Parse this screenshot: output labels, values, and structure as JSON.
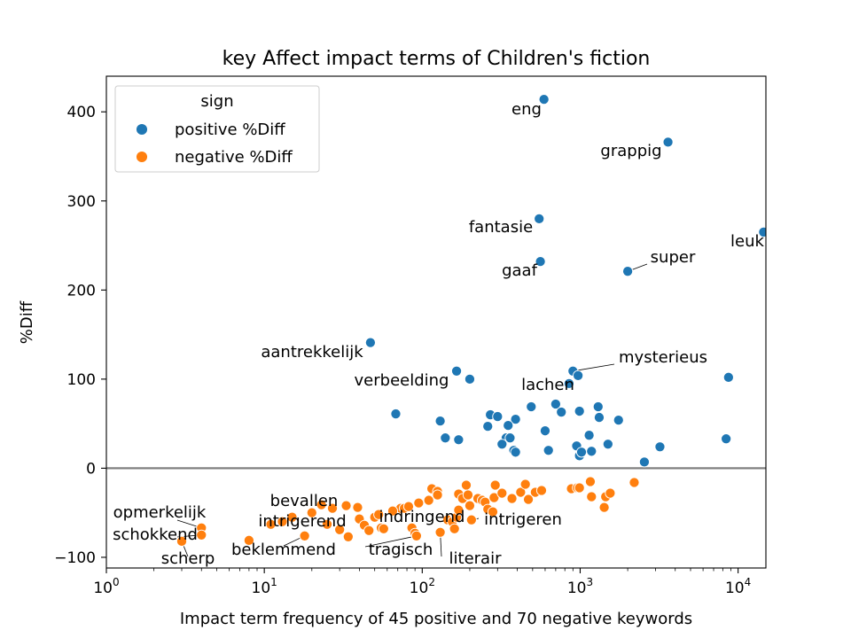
{
  "chart_data": {
    "type": "scatter",
    "title": "key Affect impact terms of Children's fiction",
    "xlabel": "Impact term frequency of 45 positive and 70 negative keywords",
    "ylabel": "%Diff",
    "xscale": "log",
    "xlim": [
      1,
      15000
    ],
    "ylim": [
      -112,
      440
    ],
    "x_ticks": [
      1,
      10,
      100,
      1000,
      10000
    ],
    "x_tick_labels": [
      [
        "10",
        "0"
      ],
      [
        "10",
        "1"
      ],
      [
        "10",
        "2"
      ],
      [
        "10",
        "3"
      ],
      [
        "10",
        "4"
      ]
    ],
    "y_ticks": [
      -100,
      0,
      100,
      200,
      300,
      400
    ],
    "y_tick_labels": [
      "−100",
      "0",
      "100",
      "200",
      "300",
      "400"
    ],
    "grid": false,
    "reference_line_y": 0,
    "legend": {
      "title": "sign",
      "placement": "top-left",
      "entries": [
        {
          "label": "positive %Diff",
          "color": "#1f77b4"
        },
        {
          "label": "negative %Diff",
          "color": "#ff7f0e"
        }
      ]
    },
    "series": [
      {
        "name": "positive %Diff",
        "color": "#1f77b4",
        "points": [
          [
            590,
            414
          ],
          [
            3600,
            366
          ],
          [
            14500,
            265
          ],
          [
            550,
            280
          ],
          [
            560,
            232
          ],
          [
            2000,
            221
          ],
          [
            47,
            141
          ],
          [
            165,
            109
          ],
          [
            200,
            100
          ],
          [
            900,
            109
          ],
          [
            970,
            104
          ],
          [
            8700,
            102
          ],
          [
            850,
            95
          ],
          [
            68,
            61
          ],
          [
            130,
            53
          ],
          [
            270,
            60
          ],
          [
            300,
            58
          ],
          [
            390,
            55
          ],
          [
            490,
            69
          ],
          [
            700,
            72
          ],
          [
            760,
            63
          ],
          [
            990,
            64
          ],
          [
            1300,
            69
          ],
          [
            1320,
            57
          ],
          [
            1750,
            54
          ],
          [
            260,
            47
          ],
          [
            350,
            48
          ],
          [
            600,
            42
          ],
          [
            140,
            34
          ],
          [
            170,
            32
          ],
          [
            340,
            34
          ],
          [
            360,
            34
          ],
          [
            320,
            27
          ],
          [
            380,
            20
          ],
          [
            390,
            18
          ],
          [
            630,
            20
          ],
          [
            950,
            25
          ],
          [
            990,
            14
          ],
          [
            1020,
            18
          ],
          [
            1140,
            37
          ],
          [
            1180,
            19
          ],
          [
            1500,
            27
          ],
          [
            3200,
            24
          ],
          [
            8400,
            33
          ],
          [
            2550,
            7
          ]
        ]
      },
      {
        "name": "negative %Diff",
        "color": "#ff7f0e",
        "points": [
          [
            4,
            -67
          ],
          [
            4,
            -75
          ],
          [
            3,
            -82
          ],
          [
            8,
            -81
          ],
          [
            11,
            -63
          ],
          [
            18,
            -76
          ],
          [
            23,
            -41
          ],
          [
            25,
            -63
          ],
          [
            30,
            -69
          ],
          [
            34,
            -77
          ],
          [
            33,
            -42
          ],
          [
            39,
            -44
          ],
          [
            40,
            -57
          ],
          [
            43,
            -64
          ],
          [
            46,
            -70
          ],
          [
            50,
            -55
          ],
          [
            53,
            -52
          ],
          [
            55,
            -67
          ],
          [
            57,
            -68
          ],
          [
            73,
            -45
          ],
          [
            77,
            -45
          ],
          [
            82,
            -43
          ],
          [
            86,
            -67
          ],
          [
            90,
            -73
          ],
          [
            92,
            -76
          ],
          [
            95,
            -39
          ],
          [
            110,
            -36
          ],
          [
            115,
            -23
          ],
          [
            125,
            -26
          ],
          [
            125,
            -30
          ],
          [
            130,
            -72
          ],
          [
            145,
            -58
          ],
          [
            155,
            -60
          ],
          [
            160,
            -68
          ],
          [
            165,
            -55
          ],
          [
            170,
            -47
          ],
          [
            170,
            -29
          ],
          [
            180,
            -34
          ],
          [
            190,
            -19
          ],
          [
            195,
            -30
          ],
          [
            200,
            -42
          ],
          [
            205,
            -58
          ],
          [
            225,
            -34
          ],
          [
            240,
            -36
          ],
          [
            250,
            -38
          ],
          [
            260,
            -46
          ],
          [
            280,
            -49
          ],
          [
            285,
            -33
          ],
          [
            290,
            -19
          ],
          [
            320,
            -28
          ],
          [
            370,
            -34
          ],
          [
            420,
            -27
          ],
          [
            450,
            -18
          ],
          [
            470,
            -35
          ],
          [
            520,
            -27
          ],
          [
            570,
            -25
          ],
          [
            880,
            -23
          ],
          [
            960,
            -22
          ],
          [
            990,
            -22
          ],
          [
            1160,
            -15
          ],
          [
            1180,
            -32
          ],
          [
            1450,
            -32
          ],
          [
            1550,
            -28
          ],
          [
            1420,
            -44
          ],
          [
            2200,
            -16
          ],
          [
            13,
            -60
          ],
          [
            15,
            -55
          ],
          [
            20,
            -50
          ],
          [
            27,
            -45
          ],
          [
            65,
            -48
          ]
        ]
      }
    ],
    "annotations": [
      {
        "text": "eng",
        "x": 590,
        "y": 414
      },
      {
        "text": "grappig",
        "x": 3600,
        "y": 366
      },
      {
        "text": "leuk",
        "x": 14500,
        "y": 265
      },
      {
        "text": "fantasie",
        "x": 550,
        "y": 280
      },
      {
        "text": "gaaf",
        "x": 560,
        "y": 232
      },
      {
        "text": "super",
        "x": 2000,
        "y": 221
      },
      {
        "text": "aantrekkelijk",
        "x": 47,
        "y": 141
      },
      {
        "text": "mysterieus",
        "x": 900,
        "y": 109
      },
      {
        "text": "verbeelding",
        "x": 200,
        "y": 100
      },
      {
        "text": "lachen",
        "x": 850,
        "y": 95
      },
      {
        "text": "bevallen",
        "x": 23,
        "y": -41
      },
      {
        "text": "opmerkelijk",
        "x": 4,
        "y": -67
      },
      {
        "text": "indringend",
        "x": 145,
        "y": -58
      },
      {
        "text": "intrigeren",
        "x": 205,
        "y": -58
      },
      {
        "text": "intrigerend",
        "x": 11,
        "y": -63
      },
      {
        "text": "schokkend",
        "x": 4,
        "y": -75
      },
      {
        "text": "tragisch",
        "x": 92,
        "y": -76
      },
      {
        "text": "beklemmend",
        "x": 18,
        "y": -76
      },
      {
        "text": "literair",
        "x": 130,
        "y": -72
      },
      {
        "text": "scherp",
        "x": 3,
        "y": -82
      }
    ]
  }
}
